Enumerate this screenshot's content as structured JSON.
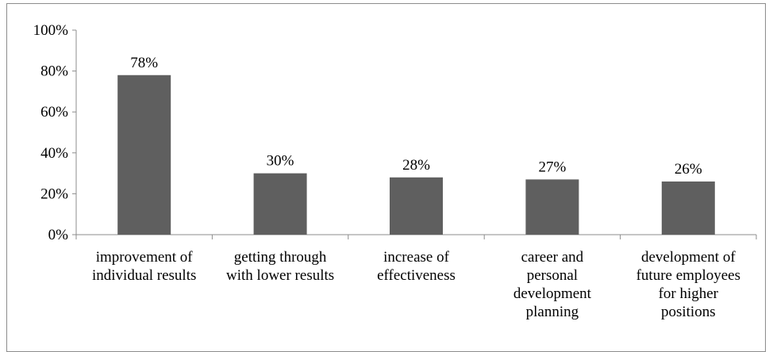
{
  "chart_data": {
    "type": "bar",
    "categories": [
      [
        "improvement of",
        "individual results"
      ],
      [
        "getting through",
        "with lower results"
      ],
      [
        "increase of",
        "effectiveness"
      ],
      [
        "career and",
        "personal",
        "development",
        "planning"
      ],
      [
        "development of",
        "future employees",
        "for higher",
        "positions"
      ]
    ],
    "values": [
      78,
      30,
      28,
      27,
      26
    ],
    "data_labels": [
      "78%",
      "30%",
      "28%",
      "27%",
      "26%"
    ],
    "yticks": [
      "0%",
      "20%",
      "40%",
      "60%",
      "80%",
      "100%"
    ],
    "ylim": [
      0,
      100
    ],
    "bar_color": "#5f5f5f",
    "axis_color": "#8c8c8c",
    "grid": false,
    "legend": "none"
  }
}
